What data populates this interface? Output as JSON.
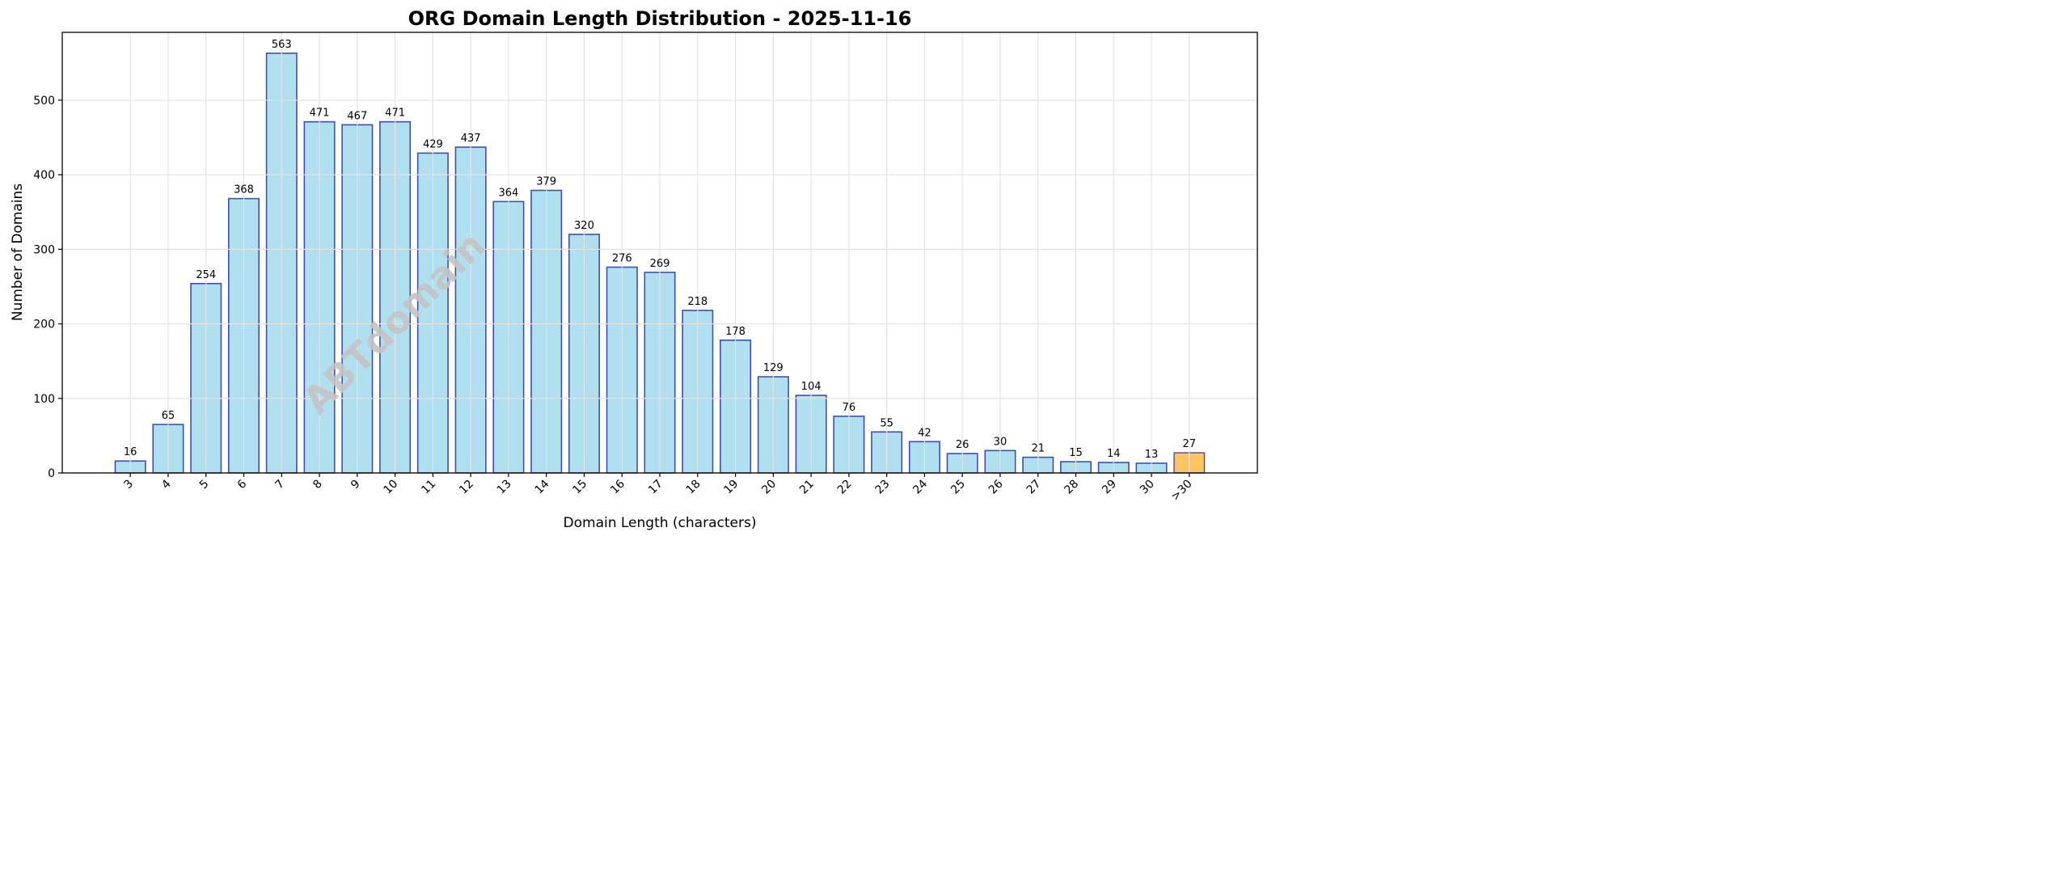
{
  "chart_data": {
    "type": "bar",
    "title": "ORG Domain Length Distribution - 2025-11-16",
    "xlabel": "Domain Length (characters)",
    "ylabel": "Number of Domains",
    "categories": [
      "3",
      "4",
      "5",
      "6",
      "7",
      "8",
      "9",
      "10",
      "11",
      "12",
      "13",
      "14",
      "15",
      "16",
      "17",
      "18",
      "19",
      "20",
      "21",
      "22",
      "23",
      "24",
      "25",
      "26",
      "27",
      "28",
      "29",
      "30",
      ">30"
    ],
    "values": [
      16,
      65,
      254,
      368,
      563,
      471,
      467,
      471,
      429,
      437,
      364,
      379,
      320,
      276,
      269,
      218,
      178,
      129,
      104,
      76,
      55,
      42,
      26,
      30,
      21,
      15,
      14,
      13,
      27
    ],
    "ylim": [
      0,
      591
    ],
    "yticks": [
      0,
      100,
      200,
      300,
      400,
      500
    ],
    "grid": true,
    "data_labels": true,
    "watermark": "ABTdomain",
    "colors": {
      "bar_fill": "#a9dcee",
      "bar_edge": "#3f4fb0",
      "highlight_fill": "#ffbf55",
      "highlight_edge": "#6a5a8a",
      "grid": "#e3e3e3",
      "watermark": "#c4c4c4"
    }
  }
}
